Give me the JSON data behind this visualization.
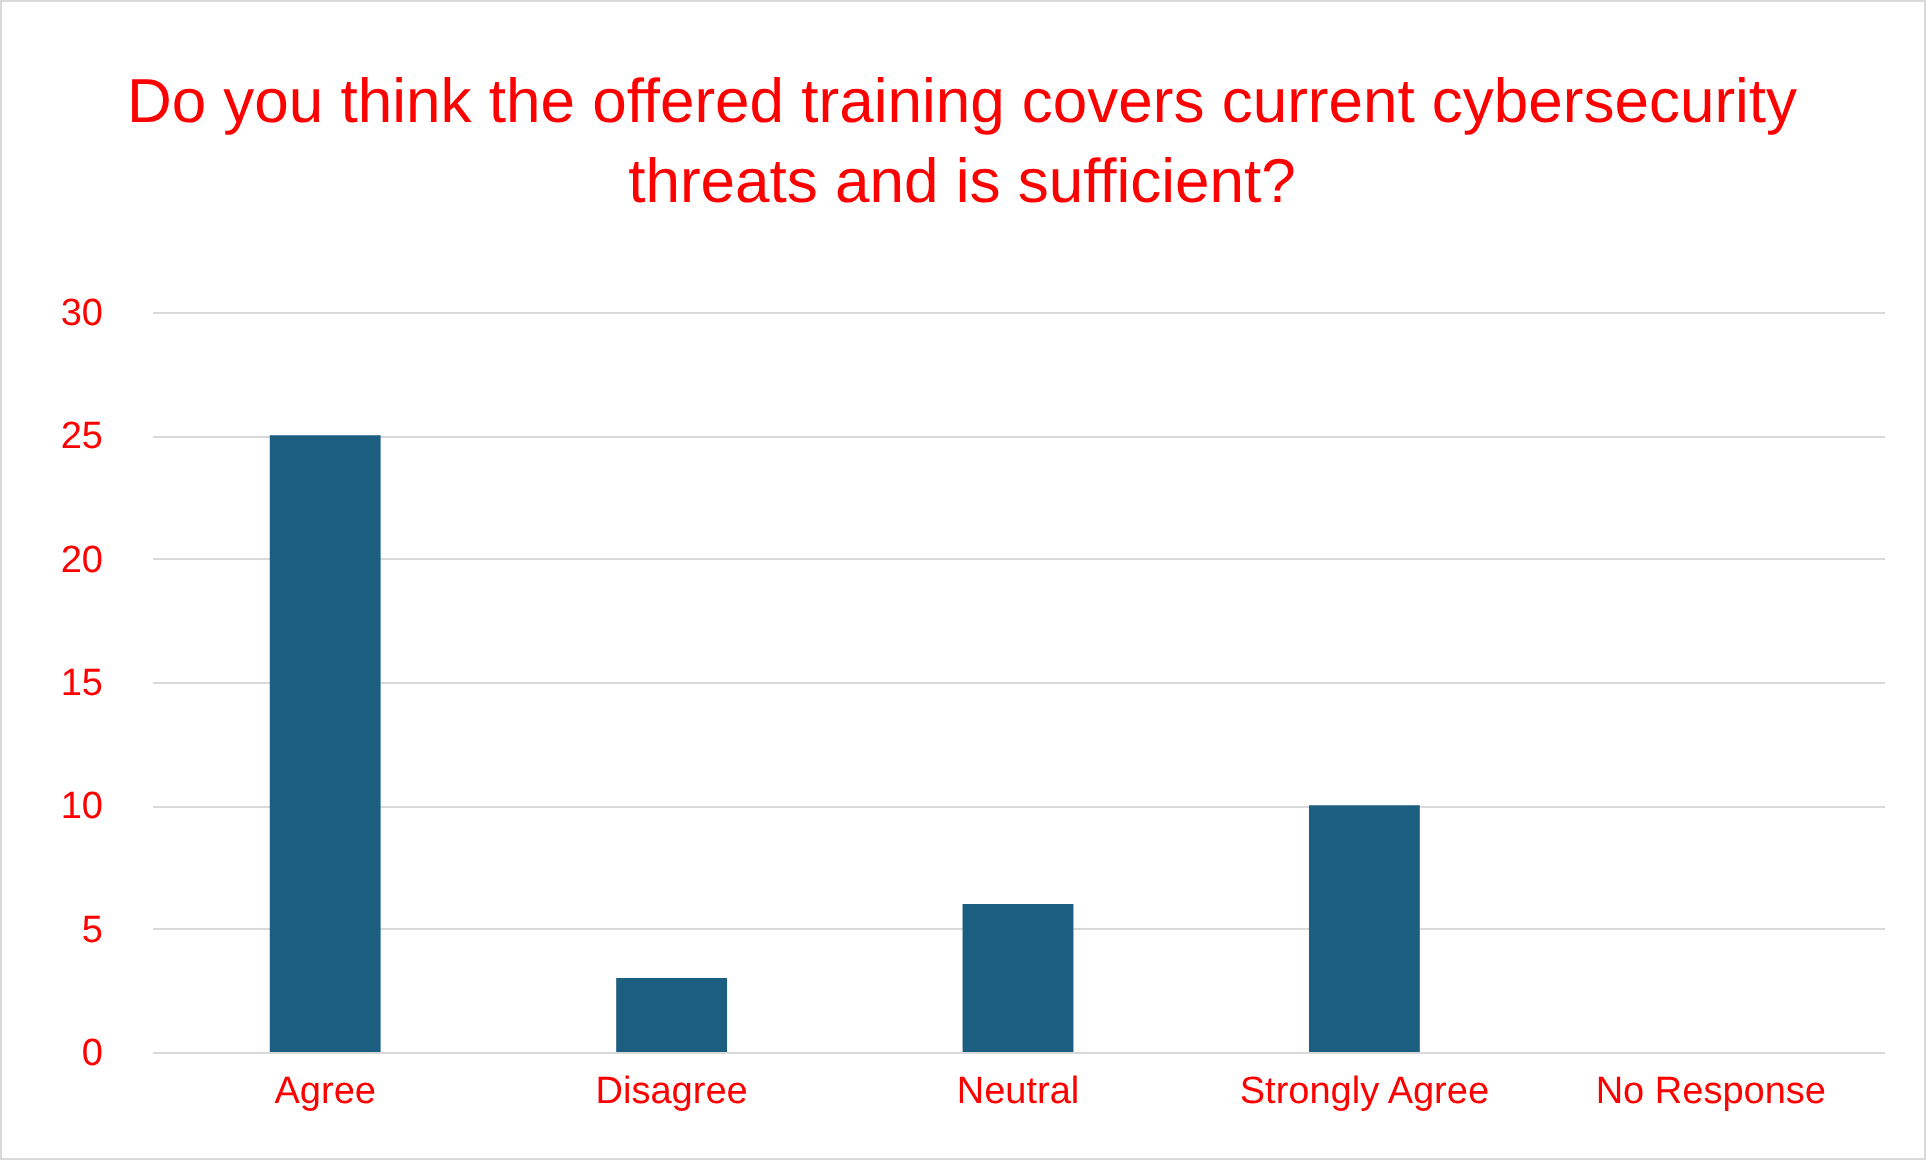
{
  "chart_data": {
    "type": "bar",
    "title": "Do you think the offered training covers current cybersecurity threats and is sufficient?",
    "categories": [
      "Agree",
      "Disagree",
      "Neutral",
      "Strongly Agree",
      "No Response"
    ],
    "values": [
      25,
      3,
      6,
      10,
      0
    ],
    "color": "#1b5e80",
    "ylim": [
      0,
      30
    ],
    "yticks": [
      0,
      5,
      10,
      15,
      20,
      25,
      30
    ],
    "grid": "y"
  }
}
